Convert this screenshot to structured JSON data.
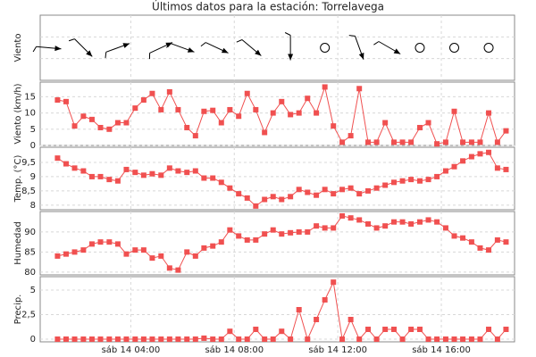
{
  "chart_data": {
    "type": "line",
    "title": "Últimos datos para la estación: Torrelavega",
    "color": "#f05050",
    "grid": true,
    "xlim": [
      0.5,
      18.83
    ],
    "xticks": [
      {
        "value": 4,
        "label": "sáb 14 04:00"
      },
      {
        "value": 8,
        "label": "sáb 14 08:00"
      },
      {
        "value": 12,
        "label": "sáb 14 12:00"
      },
      {
        "value": 16,
        "label": "sáb 14 16:00"
      }
    ],
    "x": [
      1.17,
      1.5,
      1.83,
      2.17,
      2.5,
      2.83,
      3.17,
      3.5,
      3.83,
      4.17,
      4.5,
      4.83,
      5.17,
      5.5,
      5.83,
      6.17,
      6.5,
      6.83,
      7.17,
      7.5,
      7.83,
      8.17,
      8.5,
      8.83,
      9.17,
      9.5,
      9.83,
      10.17,
      10.5,
      10.83,
      11.17,
      11.5,
      11.83,
      12.17,
      12.5,
      12.83,
      13.17,
      13.5,
      13.83,
      14.17,
      14.5,
      14.83,
      15.17,
      15.5,
      15.83,
      16.17,
      16.5,
      16.83,
      17.17,
      17.5,
      17.83,
      18.17,
      18.5
    ],
    "panels": [
      {
        "type": "wind",
        "ylabel": "Viento",
        "x": [
          0.83,
          2.17,
          3.5,
          5.17,
          6.0,
          7.33,
          8.67,
          10.17,
          11.5,
          12.83,
          14.0,
          15.17,
          16.5,
          17.83
        ],
        "values": [
          95,
          135,
          70,
          65,
          110,
          115,
          130,
          180,
          null,
          160,
          120,
          null,
          null,
          null
        ]
      },
      {
        "type": "line",
        "ylabel": "Viento (km/h)",
        "ylim": [
          0,
          19.5
        ],
        "yticks": [
          0,
          5,
          10,
          15
        ],
        "values": [
          14,
          13.5,
          6,
          9,
          8,
          5.5,
          5,
          7,
          7,
          11.5,
          14,
          16,
          11,
          16.5,
          11,
          5.5,
          3,
          10.5,
          10.8,
          7,
          11,
          9,
          16,
          11,
          4,
          10,
          13.5,
          9.5,
          10,
          14.5,
          10,
          18,
          6,
          1,
          3,
          17.5,
          1,
          1,
          7,
          1,
          1,
          1,
          5.5,
          7,
          0.5,
          1,
          10.5,
          1,
          1,
          1,
          10,
          1,
          4.5
        ]
      },
      {
        "type": "line",
        "ylabel": "Temp. (°C)",
        "ylim": [
          7.84,
          10.03
        ],
        "yticks": [
          8,
          {
            "value": 8.5,
            "label": "8,5"
          },
          9,
          {
            "value": 9.5,
            "label": "9,5"
          }
        ],
        "values": [
          9.65,
          9.45,
          9.3,
          9.2,
          9.0,
          9.0,
          8.9,
          8.85,
          9.25,
          9.15,
          9.05,
          9.1,
          9.05,
          9.3,
          9.2,
          9.15,
          9.2,
          8.95,
          8.95,
          8.8,
          8.6,
          8.4,
          8.25,
          7.97,
          8.2,
          8.3,
          8.2,
          8.3,
          8.55,
          8.45,
          8.35,
          8.55,
          8.4,
          8.55,
          8.6,
          8.4,
          8.5,
          8.6,
          8.7,
          8.8,
          8.85,
          8.9,
          8.85,
          8.9,
          9.0,
          9.2,
          9.35,
          9.55,
          9.7,
          9.8,
          9.85,
          9.3,
          9.25
        ]
      },
      {
        "type": "line",
        "ylabel": "Humedad",
        "ylim": [
          79.3,
          95.1
        ],
        "yticks": [
          80,
          85,
          90
        ],
        "values": [
          84,
          84.5,
          85,
          85.5,
          87,
          87.5,
          87.5,
          87,
          84.5,
          85.5,
          85.5,
          83.5,
          84,
          81,
          80.5,
          85,
          84,
          86,
          86.5,
          87.5,
          90.5,
          89,
          88,
          88,
          89.5,
          90.5,
          89.5,
          89.8,
          90,
          90,
          91.5,
          91,
          91,
          94,
          93.5,
          93,
          92,
          91,
          91.5,
          92.5,
          92.5,
          92,
          92.5,
          93,
          92.5,
          91,
          89,
          88.5,
          87.5,
          86,
          85.5,
          88,
          87.5
        ]
      },
      {
        "type": "line",
        "ylabel": "Precip.",
        "ylim": [
          -0.27,
          6.36
        ],
        "yticks": [
          0,
          {
            "value": 2.5,
            "label": "2,5"
          },
          5
        ],
        "values": [
          0,
          0,
          0,
          0,
          0,
          0,
          0,
          0,
          0,
          0,
          0,
          0,
          0,
          0,
          0,
          0,
          0,
          0.1,
          0,
          0,
          0.8,
          0,
          0,
          1,
          0,
          0,
          0.8,
          0,
          3,
          0,
          2,
          4,
          5.8,
          0,
          2,
          0,
          1,
          0,
          1,
          1,
          0,
          1,
          1,
          0,
          0,
          0,
          0,
          0,
          0,
          0,
          1,
          0,
          1
        ]
      }
    ]
  }
}
